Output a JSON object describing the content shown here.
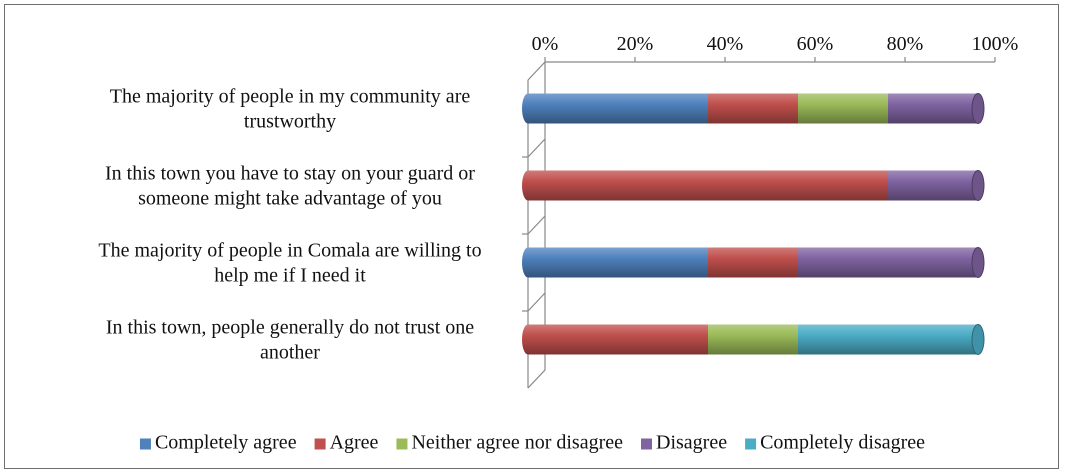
{
  "chart_data": {
    "type": "bar",
    "orientation": "horizontal",
    "stacked": "percent",
    "style": "3d-cylinder",
    "categories": [
      [
        "The majority of people in my community are",
        "trustworthy"
      ],
      [
        "In this town you have to stay on your guard or",
        "someone might take advantage of you"
      ],
      [
        "The majority of people in Comala are willing to",
        "help me if I need it"
      ],
      [
        "In this town, people generally do not trust one",
        "another"
      ]
    ],
    "series": [
      {
        "name": "Completely agree",
        "color": "#4f81bd",
        "values": [
          40,
          0,
          40,
          0
        ]
      },
      {
        "name": "Agree",
        "color": "#c0504d",
        "values": [
          20,
          80,
          20,
          40
        ]
      },
      {
        "name": "Neither agree nor disagree",
        "color": "#9bbb59",
        "values": [
          20,
          0,
          0,
          20
        ]
      },
      {
        "name": "Disagree",
        "color": "#8064a2",
        "values": [
          20,
          20,
          40,
          0
        ]
      },
      {
        "name": "Completely disagree",
        "color": "#4bacc6",
        "values": [
          0,
          0,
          0,
          40
        ]
      }
    ],
    "xticks": [
      "0%",
      "20%",
      "40%",
      "60%",
      "80%",
      "100%"
    ],
    "xlim": [
      0,
      100
    ],
    "xaxis_position": "top",
    "grid": false,
    "legend": "bottom"
  }
}
